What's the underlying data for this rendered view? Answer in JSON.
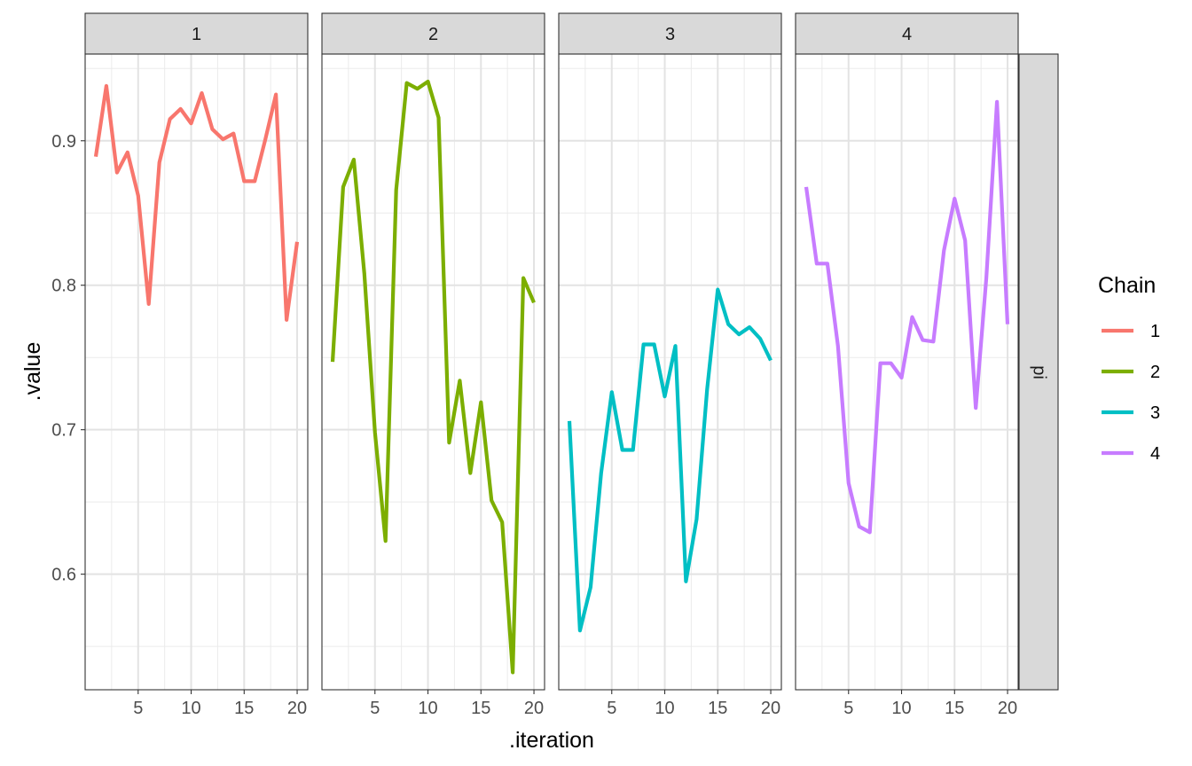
{
  "chart_data": {
    "type": "line",
    "xlabel": ".iteration",
    "ylabel": ".value",
    "facet_row_label": "pi",
    "xlim": [
      0,
      21
    ],
    "ylim": [
      0.52,
      0.96
    ],
    "x_ticks": [
      5,
      10,
      15,
      20
    ],
    "y_ticks": [
      0.6,
      0.7,
      0.8,
      0.9
    ],
    "y_tick_labels": [
      "0.6",
      "0.7",
      "0.8",
      "0.9"
    ],
    "grid": true,
    "legend": {
      "title": "Chain",
      "position": "right",
      "entries": [
        "1",
        "2",
        "3",
        "4"
      ]
    },
    "x": [
      1,
      2,
      3,
      4,
      5,
      6,
      7,
      8,
      9,
      10,
      11,
      12,
      13,
      14,
      15,
      16,
      17,
      18,
      19,
      20
    ],
    "series": [
      {
        "name": "1",
        "color": "#F8766D",
        "values": [
          0.889,
          0.938,
          0.878,
          0.892,
          0.862,
          0.787,
          0.885,
          0.915,
          0.922,
          0.912,
          0.933,
          0.908,
          0.901,
          0.905,
          0.872,
          0.872,
          0.901,
          0.932,
          0.776,
          0.83
        ]
      },
      {
        "name": "2",
        "color": "#7CAE00",
        "values": [
          0.747,
          0.868,
          0.887,
          0.808,
          0.698,
          0.623,
          0.866,
          0.94,
          0.936,
          0.941,
          0.916,
          0.691,
          0.734,
          0.67,
          0.719,
          0.651,
          0.636,
          0.532,
          0.805,
          0.788
        ]
      },
      {
        "name": "3",
        "color": "#00BFC4",
        "values": [
          0.706,
          0.561,
          0.591,
          0.67,
          0.726,
          0.686,
          0.686,
          0.759,
          0.759,
          0.723,
          0.758,
          0.595,
          0.638,
          0.728,
          0.797,
          0.773,
          0.766,
          0.771,
          0.763,
          0.748
        ]
      },
      {
        "name": "4",
        "color": "#C77CFF",
        "values": [
          0.868,
          0.815,
          0.815,
          0.758,
          0.663,
          0.633,
          0.629,
          0.746,
          0.746,
          0.736,
          0.778,
          0.762,
          0.761,
          0.824,
          0.86,
          0.831,
          0.715,
          0.805,
          0.927,
          0.773
        ]
      }
    ]
  }
}
